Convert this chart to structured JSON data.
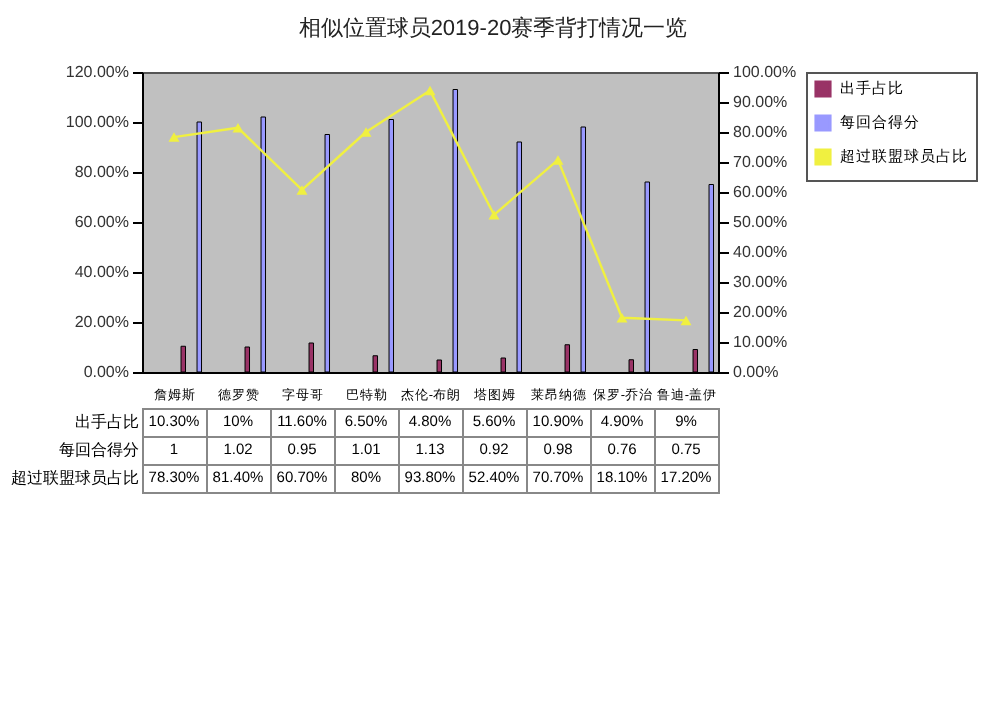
{
  "chart_data": {
    "type": "bar",
    "title": "相似位置球员2019-20赛季背打情况一览",
    "categories": [
      "詹姆斯",
      "德罗赞",
      "字母哥",
      "巴特勒",
      "杰伦-布朗",
      "塔图姆",
      "莱昂纳德",
      "保罗-乔治",
      "鲁迪-盖伊"
    ],
    "series": [
      {
        "name": "出手占比",
        "color": "#993366",
        "values": [
          0.103,
          0.1,
          0.116,
          0.065,
          0.048,
          0.056,
          0.109,
          0.049,
          0.09
        ],
        "value_labels": [
          "10.30%",
          "10%",
          "11.60%",
          "6.50%",
          "4.80%",
          "5.60%",
          "10.90%",
          "4.90%",
          "9%"
        ]
      },
      {
        "name": "每回合得分",
        "color": "#9999ff",
        "values": [
          1,
          1.02,
          0.95,
          1.01,
          1.13,
          0.92,
          0.98,
          0.76,
          0.75
        ],
        "value_labels": [
          "1",
          "1.02",
          "0.95",
          "1.01",
          "1.13",
          "0.92",
          "0.98",
          "0.76",
          "0.75"
        ]
      },
      {
        "name": "超过联盟球员占比",
        "type": "line",
        "axis": "y2",
        "color": "#f0f040",
        "marker": "triangle",
        "values": [
          78.3,
          81.4,
          60.7,
          80,
          93.8,
          52.4,
          70.7,
          18.1,
          17.2
        ],
        "value_labels": [
          "78.30%",
          "81.40%",
          "60.70%",
          "80%",
          "93.80%",
          "52.40%",
          "70.70%",
          "18.10%",
          "17.20%"
        ]
      }
    ],
    "ylim": [
      0,
      1.2
    ],
    "yticks": [
      {
        "value": 0,
        "label": "0.00%"
      },
      {
        "value": 0.2,
        "label": "20.00%"
      },
      {
        "value": 0.4,
        "label": "40.00%"
      },
      {
        "value": 0.6,
        "label": "60.00%"
      },
      {
        "value": 0.8,
        "label": "80.00%"
      },
      {
        "value": 1,
        "label": "100.00%"
      },
      {
        "value": 1.2,
        "label": "120.00%"
      }
    ],
    "y2lim": [
      0,
      100
    ],
    "y2ticks": [
      {
        "value": 0,
        "label": "0.00%"
      },
      {
        "value": 10,
        "label": "10.00%"
      },
      {
        "value": 20,
        "label": "20.00%"
      },
      {
        "value": 30,
        "label": "30.00%"
      },
      {
        "value": 40,
        "label": "40.00%"
      },
      {
        "value": 50,
        "label": "50.00%"
      },
      {
        "value": 60,
        "label": "60.00%"
      },
      {
        "value": 70,
        "label": "70.00%"
      },
      {
        "value": 80,
        "label": "80.00%"
      },
      {
        "value": 90,
        "label": "90.00%"
      },
      {
        "value": 100,
        "label": "100.00%"
      }
    ],
    "grid": false,
    "legend": "right"
  }
}
